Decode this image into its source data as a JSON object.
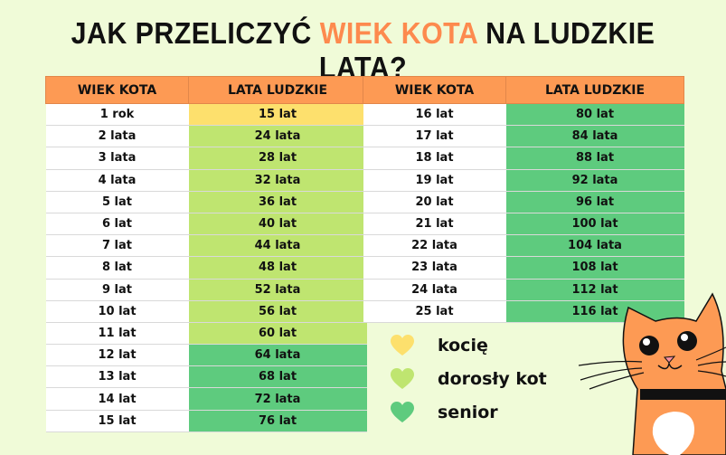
{
  "title": {
    "part1": "JAK PRZELICZYĆ ",
    "highlight": "WIEK KOTA",
    "part2": " NA LUDZKIE LATA?"
  },
  "headers": {
    "cat_age": "WIEK KOTA",
    "human_years": "LATA LUDZKIE"
  },
  "colors": {
    "header": "#fd9a54",
    "kitten": "#fde06d",
    "adult": "#bfe570",
    "senior": "#5ecb7e",
    "accent": "#fd8a4e"
  },
  "left_rows": [
    {
      "cat": "1 rok",
      "human": "15 lat",
      "stage": "kitten"
    },
    {
      "cat": "2 lata",
      "human": "24 lata",
      "stage": "adult"
    },
    {
      "cat": "3 lata",
      "human": "28 lat",
      "stage": "adult"
    },
    {
      "cat": "4 lata",
      "human": "32 lata",
      "stage": "adult"
    },
    {
      "cat": "5 lat",
      "human": "36 lat",
      "stage": "adult"
    },
    {
      "cat": "6 lat",
      "human": "40 lat",
      "stage": "adult"
    },
    {
      "cat": "7 lat",
      "human": "44 lata",
      "stage": "adult"
    },
    {
      "cat": "8 lat",
      "human": "48 lat",
      "stage": "adult"
    },
    {
      "cat": "9 lat",
      "human": "52 lata",
      "stage": "adult"
    },
    {
      "cat": "10 lat",
      "human": "56 lat",
      "stage": "adult"
    },
    {
      "cat": "11 lat",
      "human": "60 lat",
      "stage": "adult"
    },
    {
      "cat": "12 lat",
      "human": "64 lata",
      "stage": "senior"
    },
    {
      "cat": "13 lat",
      "human": "68 lat",
      "stage": "senior"
    },
    {
      "cat": "14 lat",
      "human": "72 lata",
      "stage": "senior"
    },
    {
      "cat": "15 lat",
      "human": "76 lat",
      "stage": "senior"
    }
  ],
  "right_rows": [
    {
      "cat": "16 lat",
      "human": "80 lat",
      "stage": "senior"
    },
    {
      "cat": "17 lat",
      "human": "84 lata",
      "stage": "senior"
    },
    {
      "cat": "18 lat",
      "human": "88 lat",
      "stage": "senior"
    },
    {
      "cat": "19 lat",
      "human": "92 lata",
      "stage": "senior"
    },
    {
      "cat": "20 lat",
      "human": "96 lat",
      "stage": "senior"
    },
    {
      "cat": "21 lat",
      "human": "100 lat",
      "stage": "senior"
    },
    {
      "cat": "22 lata",
      "human": "104 lata",
      "stage": "senior"
    },
    {
      "cat": "23 lata",
      "human": "108 lat",
      "stage": "senior"
    },
    {
      "cat": "24 lata",
      "human": "112 lat",
      "stage": "senior"
    },
    {
      "cat": "25 lat",
      "human": "116 lat",
      "stage": "senior"
    }
  ],
  "legend": [
    {
      "label": "kocię",
      "stage": "kitten",
      "icon": "heart-icon"
    },
    {
      "label": "dorosły kot",
      "stage": "adult",
      "icon": "heart-icon"
    },
    {
      "label": "senior",
      "stage": "senior",
      "icon": "heart-icon"
    }
  ]
}
